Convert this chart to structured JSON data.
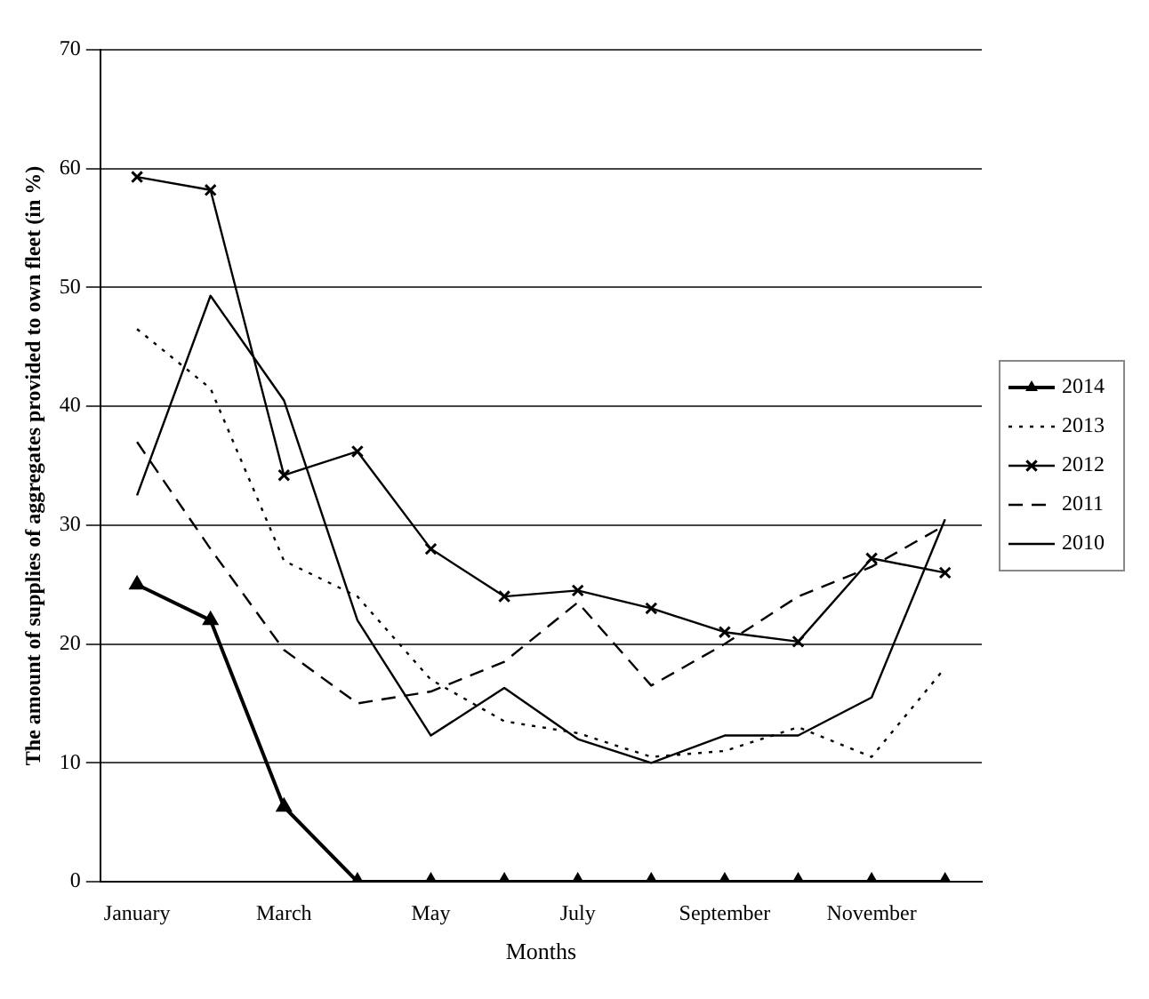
{
  "chart_data": {
    "type": "line",
    "xlabel": "Months",
    "ylabel": "The amount of supplies of aggregates provided to own fleet (in %)",
    "categories": [
      "January",
      null,
      "March",
      null,
      "May",
      null,
      "July",
      null,
      "September",
      null,
      "November",
      null
    ],
    "ylim": [
      0,
      70
    ],
    "yticks": [
      0,
      10,
      20,
      30,
      40,
      50,
      60,
      70
    ],
    "grid": "y",
    "legend": "right",
    "series": [
      {
        "name": "2014",
        "color": "#000000",
        "marker": "triangle",
        "line_style": "solid",
        "values": [
          25,
          22,
          6.3,
          0,
          0,
          0,
          0,
          0,
          0,
          0,
          0,
          0
        ]
      },
      {
        "name": "2013",
        "color": "#000000",
        "marker": "none",
        "line_style": "dotted",
        "values": [
          46.5,
          41.5,
          27,
          24,
          17,
          13.5,
          12.5,
          10.5,
          11,
          13,
          10.5,
          18
        ]
      },
      {
        "name": "2012",
        "color": "#000000",
        "marker": "cross",
        "line_style": "solid",
        "values": [
          59.3,
          58.2,
          34.2,
          36.2,
          28,
          24,
          24.5,
          23,
          21,
          20.2,
          27.2,
          26
        ]
      },
      {
        "name": "2011",
        "color": "#000000",
        "marker": "none",
        "line_style": "dashed",
        "values": [
          37,
          28,
          19.5,
          15,
          16,
          18.5,
          23.5,
          16.5,
          20,
          24,
          26.5,
          30
        ]
      },
      {
        "name": "2010",
        "color": "#000000",
        "marker": "none",
        "line_style": "solid",
        "values": [
          32.5,
          49.3,
          40.5,
          22,
          12.3,
          16.3,
          12,
          10,
          12.3,
          12.3,
          15.5,
          30.5
        ]
      }
    ]
  }
}
